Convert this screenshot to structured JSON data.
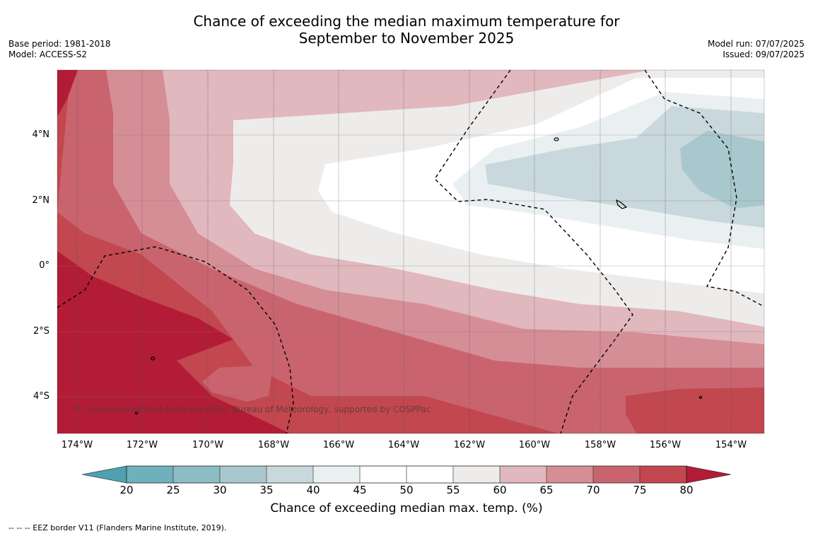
{
  "title_line1": "Chance of exceeding the median maximum temperature for",
  "title_line2": "September to November 2025",
  "meta_left": {
    "base_period": "Base period: 1981-2018",
    "model": "Model: ACCESS-S2"
  },
  "meta_right": {
    "model_run": "Model run: 07/07/2025",
    "issued": "Issued: 09/07/2025"
  },
  "copyright": "© Commonwealth of Australia 2025, Bureau of Meteorology, supported by COSPPac",
  "lat_labels": [
    "4°N",
    "2°N",
    "0°",
    "2°S",
    "4°S"
  ],
  "lon_labels": [
    "174°W",
    "172°W",
    "170°W",
    "168°W",
    "166°W",
    "164°W",
    "162°W",
    "160°W",
    "158°W",
    "156°W",
    "154°W"
  ],
  "colorbar": {
    "title": "Chance of exceeding median max. temp. (%)",
    "ticks": [
      "20",
      "25",
      "30",
      "35",
      "40",
      "45",
      "50",
      "55",
      "60",
      "65",
      "70",
      "75",
      "80"
    ],
    "colors": {
      "below_20": "#4fa0b0",
      "b20_25": "#6fb0bd",
      "b25_30": "#8cbcc4",
      "b30_35": "#a9c8cd",
      "b35_40": "#c9d8dc",
      "b40_45": "#eaf0f2",
      "b45_50": "#ffffff",
      "b50_55": "#ffffff",
      "b55_60": "#eeecea",
      "b60_65": "#e0b8be",
      "b65_70": "#d58d96",
      "b70_75": "#c9646f",
      "b75_80": "#c2474f",
      "above_80": "#b31c36"
    }
  },
  "footer": "--  --  -- EEZ border V11 (Flanders Marine Institute, 2019)."
}
